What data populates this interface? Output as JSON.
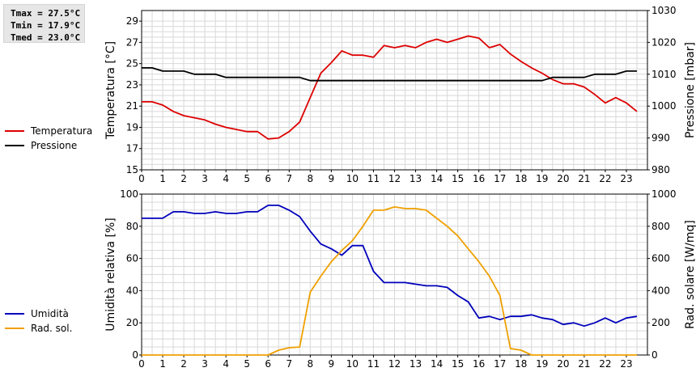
{
  "stats": {
    "tmax": "Tmax = 27.5°C",
    "tmin": "Tmin = 17.9°C",
    "tmed": "Tmed = 23.0°C"
  },
  "colors": {
    "temperature": "#dd0000",
    "pressure": "#000000",
    "humidity": "#0000bb",
    "radiation": "#f0a000",
    "grid": "#d8d8d8"
  },
  "legends": {
    "top": [
      {
        "label": "Temperatura",
        "color": "#dd0000"
      },
      {
        "label": "Pressione",
        "color": "#000000"
      }
    ],
    "bottom": [
      {
        "label": "Umidità",
        "color": "#0000bb"
      },
      {
        "label": "Rad. sol.",
        "color": "#f0a000"
      }
    ]
  },
  "chart_data": [
    {
      "type": "line",
      "xlabel": "",
      "ylabel": "Temperatura [°C]",
      "y2label": "Pressione [mbar]",
      "xlim": [
        0,
        24
      ],
      "ylim": [
        15,
        30
      ],
      "y2lim": [
        980,
        1030
      ],
      "xticks": [
        "0",
        "1",
        "2",
        "3",
        "4",
        "5",
        "6",
        "7",
        "8",
        "9",
        "10",
        "11",
        "12",
        "13",
        "14",
        "15",
        "16",
        "17",
        "18",
        "19",
        "20",
        "21",
        "22",
        "23"
      ],
      "yticks": [
        "15",
        "17",
        "19",
        "21",
        "23",
        "25",
        "27",
        "29"
      ],
      "y2ticks": [
        "980",
        "990",
        "1000",
        "1010",
        "1020",
        "1030"
      ],
      "grid": true,
      "legend": "left",
      "series": [
        {
          "name": "Temperatura",
          "axis": "left",
          "color": "#dd0000",
          "x": [
            0,
            0.5,
            1,
            1.5,
            2,
            2.5,
            3,
            3.5,
            4,
            4.5,
            5,
            5.5,
            6,
            6.5,
            7,
            7.5,
            8,
            8.5,
            9,
            9.5,
            10,
            10.5,
            11,
            11.5,
            12,
            12.5,
            13,
            13.5,
            14,
            14.5,
            15,
            15.5,
            16,
            16.5,
            17,
            17.5,
            18,
            18.5,
            19,
            19.5,
            20,
            20.5,
            21,
            21.5,
            22,
            22.5,
            23,
            23.5
          ],
          "y": [
            21.4,
            21.4,
            21.1,
            20.5,
            20.1,
            19.9,
            19.7,
            19.3,
            19.0,
            18.8,
            18.6,
            18.6,
            17.9,
            18.0,
            18.6,
            19.5,
            21.8,
            24.1,
            25.1,
            26.2,
            25.8,
            25.8,
            25.6,
            26.7,
            26.5,
            26.7,
            26.5,
            27.0,
            27.3,
            27.0,
            27.3,
            27.6,
            27.4,
            26.5,
            26.8,
            25.9,
            25.2,
            24.6,
            24.1,
            23.5,
            23.1,
            23.1,
            22.8,
            22.1,
            21.3,
            21.8,
            21.3,
            20.5
          ]
        },
        {
          "name": "Pressione",
          "axis": "right",
          "color": "#000000",
          "x": [
            0,
            0.5,
            1,
            1.5,
            2,
            2.5,
            3,
            3.5,
            4,
            4.5,
            5,
            5.5,
            6,
            6.5,
            7,
            7.5,
            8,
            8.5,
            9,
            9.5,
            10,
            10.5,
            11,
            11.5,
            12,
            12.5,
            13,
            13.5,
            14,
            14.5,
            15,
            15.5,
            16,
            16.5,
            17,
            17.5,
            18,
            18.5,
            19,
            19.5,
            20,
            20.5,
            21,
            21.5,
            22,
            22.5,
            23,
            23.5
          ],
          "y": [
            1012,
            1012,
            1011,
            1011,
            1011,
            1010,
            1010,
            1010,
            1009,
            1009,
            1009,
            1009,
            1009,
            1009,
            1009,
            1009,
            1008,
            1008,
            1008,
            1008,
            1008,
            1008,
            1008,
            1008,
            1008,
            1008,
            1008,
            1008,
            1008,
            1008,
            1008,
            1008,
            1008,
            1008,
            1008,
            1008,
            1008,
            1008,
            1008,
            1009,
            1009,
            1009,
            1009,
            1010,
            1010,
            1010,
            1011,
            1011
          ]
        }
      ]
    },
    {
      "type": "line",
      "xlabel": "",
      "ylabel": "Umidità relativa [%]",
      "y2label": "Rad. solare [W/mq]",
      "xlim": [
        0,
        24
      ],
      "ylim": [
        0,
        100
      ],
      "y2lim": [
        0,
        1000
      ],
      "xticks": [
        "0",
        "1",
        "2",
        "3",
        "4",
        "5",
        "6",
        "7",
        "8",
        "9",
        "10",
        "11",
        "12",
        "13",
        "14",
        "15",
        "16",
        "17",
        "18",
        "19",
        "20",
        "21",
        "22",
        "23"
      ],
      "yticks": [
        "0",
        "20",
        "40",
        "60",
        "80",
        "100"
      ],
      "y2ticks": [
        "0",
        "200",
        "400",
        "600",
        "800",
        "1000"
      ],
      "grid": true,
      "legend": "left",
      "series": [
        {
          "name": "Umidità",
          "axis": "left",
          "color": "#0000bb",
          "x": [
            0,
            0.5,
            1,
            1.5,
            2,
            2.5,
            3,
            3.5,
            4,
            4.5,
            5,
            5.5,
            6,
            6.5,
            7,
            7.5,
            8,
            8.5,
            9,
            9.5,
            10,
            10.5,
            11,
            11.5,
            12,
            12.5,
            13,
            13.5,
            14,
            14.5,
            15,
            15.5,
            16,
            16.5,
            17,
            17.5,
            18,
            18.5,
            19,
            19.5,
            20,
            20.5,
            21,
            21.5,
            22,
            22.5,
            23,
            23.5
          ],
          "y": [
            85,
            85,
            85,
            89,
            89,
            88,
            88,
            89,
            88,
            88,
            89,
            89,
            93,
            93,
            90,
            86,
            77,
            69,
            66,
            62,
            68,
            68,
            52,
            45,
            45,
            45,
            44,
            43,
            43,
            42,
            37,
            33,
            23,
            24,
            22,
            24,
            24,
            25,
            23,
            22,
            19,
            20,
            18,
            20,
            23,
            20,
            23,
            24
          ]
        },
        {
          "name": "Rad. sol.",
          "axis": "right",
          "color": "#f0a000",
          "x": [
            0,
            0.5,
            1,
            1.5,
            2,
            2.5,
            3,
            3.5,
            4,
            4.5,
            5,
            5.5,
            6,
            6.5,
            7,
            7.5,
            8,
            8.5,
            9,
            9.5,
            10,
            10.5,
            11,
            11.5,
            12,
            12.5,
            13,
            13.5,
            14,
            14.5,
            15,
            15.5,
            16,
            16.5,
            17,
            17.5,
            18,
            18.5,
            19,
            19.5,
            20,
            20.5,
            21,
            21.5,
            22,
            22.5,
            23,
            23.5
          ],
          "y": [
            0,
            0,
            0,
            0,
            0,
            0,
            0,
            0,
            0,
            0,
            0,
            0,
            0,
            30,
            45,
            50,
            390,
            490,
            580,
            650,
            710,
            800,
            900,
            900,
            920,
            910,
            910,
            900,
            850,
            800,
            740,
            660,
            580,
            490,
            370,
            40,
            30,
            0,
            0,
            0,
            0,
            0,
            0,
            0,
            0,
            0,
            0,
            0
          ]
        }
      ]
    }
  ]
}
